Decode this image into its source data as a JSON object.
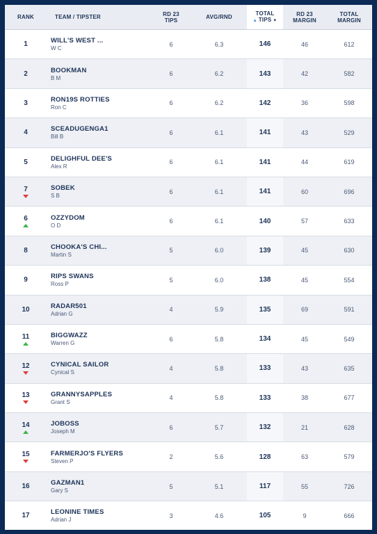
{
  "header": {
    "rank": "RANK",
    "team": "TEAM / TIPSTER",
    "rd_tips_line1": "RD 23",
    "rd_tips_line2": "TIPS",
    "avg": "AVG/RND",
    "total_tips_line1": "TOTAL",
    "total_tips_line2": "TIPS",
    "rd_margin_line1": "RD 23",
    "rd_margin_line2": "MARGIN",
    "total_margin_line1": "TOTAL",
    "total_margin_line2": "MARGIN"
  },
  "colors": {
    "up": "#3bb34a",
    "down": "#e03b3b",
    "navy": "#0b2a55",
    "sort_accent": "#3a86d4"
  },
  "rows": [
    {
      "rank": "1",
      "move": "",
      "team": "WILL'S WEST ...",
      "tipster": "W C",
      "rd_tips": "6",
      "avg": "6.3",
      "total_tips": "146",
      "rd_margin": "46",
      "total_margin": "612"
    },
    {
      "rank": "2",
      "move": "",
      "team": "BOOKMAN",
      "tipster": "B M",
      "rd_tips": "6",
      "avg": "6.2",
      "total_tips": "143",
      "rd_margin": "42",
      "total_margin": "582"
    },
    {
      "rank": "3",
      "move": "",
      "team": "RON19S ROTTIES",
      "tipster": "Ron C",
      "rd_tips": "6",
      "avg": "6.2",
      "total_tips": "142",
      "rd_margin": "36",
      "total_margin": "598"
    },
    {
      "rank": "4",
      "move": "",
      "team": "SCEADUGENGA1",
      "tipster": "Bill B",
      "rd_tips": "6",
      "avg": "6.1",
      "total_tips": "141",
      "rd_margin": "43",
      "total_margin": "529"
    },
    {
      "rank": "5",
      "move": "",
      "team": "DELIGHFUL DEE'S",
      "tipster": "Alex R",
      "rd_tips": "6",
      "avg": "6.1",
      "total_tips": "141",
      "rd_margin": "44",
      "total_margin": "619"
    },
    {
      "rank": "7",
      "move": "down",
      "team": "SOBEK",
      "tipster": "S B",
      "rd_tips": "6",
      "avg": "6.1",
      "total_tips": "141",
      "rd_margin": "60",
      "total_margin": "696"
    },
    {
      "rank": "6",
      "move": "up",
      "team": "OZZYDOM",
      "tipster": "O D",
      "rd_tips": "6",
      "avg": "6.1",
      "total_tips": "140",
      "rd_margin": "57",
      "total_margin": "633"
    },
    {
      "rank": "8",
      "move": "",
      "team": "CHOOKA'S CHI...",
      "tipster": "Martin S",
      "rd_tips": "5",
      "avg": "6.0",
      "total_tips": "139",
      "rd_margin": "45",
      "total_margin": "630"
    },
    {
      "rank": "9",
      "move": "",
      "team": "RIPS SWANS",
      "tipster": "Ross P",
      "rd_tips": "5",
      "avg": "6.0",
      "total_tips": "138",
      "rd_margin": "45",
      "total_margin": "554"
    },
    {
      "rank": "10",
      "move": "",
      "team": "RADAR501",
      "tipster": "Adrian G",
      "rd_tips": "4",
      "avg": "5.9",
      "total_tips": "135",
      "rd_margin": "69",
      "total_margin": "591"
    },
    {
      "rank": "11",
      "move": "up",
      "team": "BIGGWAZZ",
      "tipster": "Warren G",
      "rd_tips": "6",
      "avg": "5.8",
      "total_tips": "134",
      "rd_margin": "45",
      "total_margin": "549"
    },
    {
      "rank": "12",
      "move": "down",
      "team": "CYNICAL SAILOR",
      "tipster": "Cynical S",
      "rd_tips": "4",
      "avg": "5.8",
      "total_tips": "133",
      "rd_margin": "43",
      "total_margin": "635"
    },
    {
      "rank": "13",
      "move": "down",
      "team": "GRANNYSAPPLES",
      "tipster": "Grant S",
      "rd_tips": "4",
      "avg": "5.8",
      "total_tips": "133",
      "rd_margin": "38",
      "total_margin": "677"
    },
    {
      "rank": "14",
      "move": "up",
      "team": "JOBOSS",
      "tipster": "Joseph M",
      "rd_tips": "6",
      "avg": "5.7",
      "total_tips": "132",
      "rd_margin": "21",
      "total_margin": "628"
    },
    {
      "rank": "15",
      "move": "down",
      "team": "FARMERJO'S FLYERS",
      "tipster": "Steven P",
      "rd_tips": "2",
      "avg": "5.6",
      "total_tips": "128",
      "rd_margin": "63",
      "total_margin": "579"
    },
    {
      "rank": "16",
      "move": "",
      "team": "GAZMAN1",
      "tipster": "Gary S",
      "rd_tips": "5",
      "avg": "5.1",
      "total_tips": "117",
      "rd_margin": "55",
      "total_margin": "726"
    },
    {
      "rank": "17",
      "move": "",
      "team": "LEONINE TIMES",
      "tipster": "Adrian J",
      "rd_tips": "3",
      "avg": "4.6",
      "total_tips": "105",
      "rd_margin": "9",
      "total_margin": "666"
    }
  ]
}
